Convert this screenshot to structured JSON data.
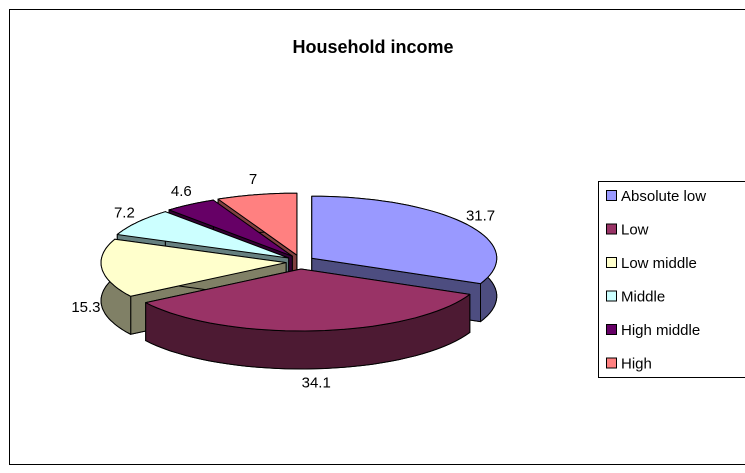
{
  "chart_data": {
    "type": "pie3d",
    "title": "Household income",
    "categories": [
      "Absolute low",
      "Low",
      "Low middle",
      "Middle",
      "High middle",
      "High"
    ],
    "values": [
      31.7,
      34.1,
      15.3,
      7.2,
      4.6,
      7
    ],
    "colors": [
      "#9999ff",
      "#993366",
      "#ffffcc",
      "#ccffff",
      "#660066",
      "#ff8080"
    ],
    "legend": "right"
  }
}
